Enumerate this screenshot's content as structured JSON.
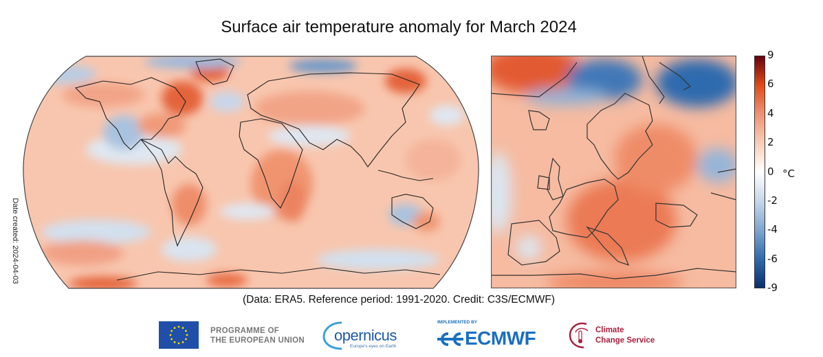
{
  "chart_data": {
    "type": "heatmap",
    "title": "Surface air temperature anomaly for March 2024",
    "subtitle": "(Data: ERA5.  Reference period: 1991-2020.  Credit: C3S/ECMWF)",
    "side_label": "Date created: 2024-04-03",
    "panels": [
      "global (Robinson projection)",
      "Europe"
    ],
    "colorbar": {
      "unit": "°C",
      "ticks": [
        "9",
        "6",
        "4",
        "2",
        "0",
        "-2",
        "-4",
        "-6",
        "-9"
      ],
      "tick_values": [
        9,
        6,
        4,
        2,
        0,
        -2,
        -4,
        -6,
        -9
      ],
      "range": [
        -9,
        9
      ],
      "colors": {
        "9": "#67000d",
        "6": "#e04a16",
        "4": "#ef9273",
        "2": "#f9cdb8",
        "0": "#ffffff",
        "-2": "#c6d7ea",
        "-4": "#7fa6cf",
        "-6": "#2f6aae",
        "-9": "#0a2f6b"
      }
    }
  },
  "logos": {
    "eu_line1": "PROGRAMME OF",
    "eu_line2": "THE EUROPEAN UNION",
    "copernicus": "opernicus",
    "copernicus_tagline": "Europe's eyes on Earth",
    "ecmwf_impl": "IMPLEMENTED BY",
    "ecmwf": "ECMWF",
    "c3s_line1": "Climate",
    "c3s_line2": "Change Service"
  }
}
